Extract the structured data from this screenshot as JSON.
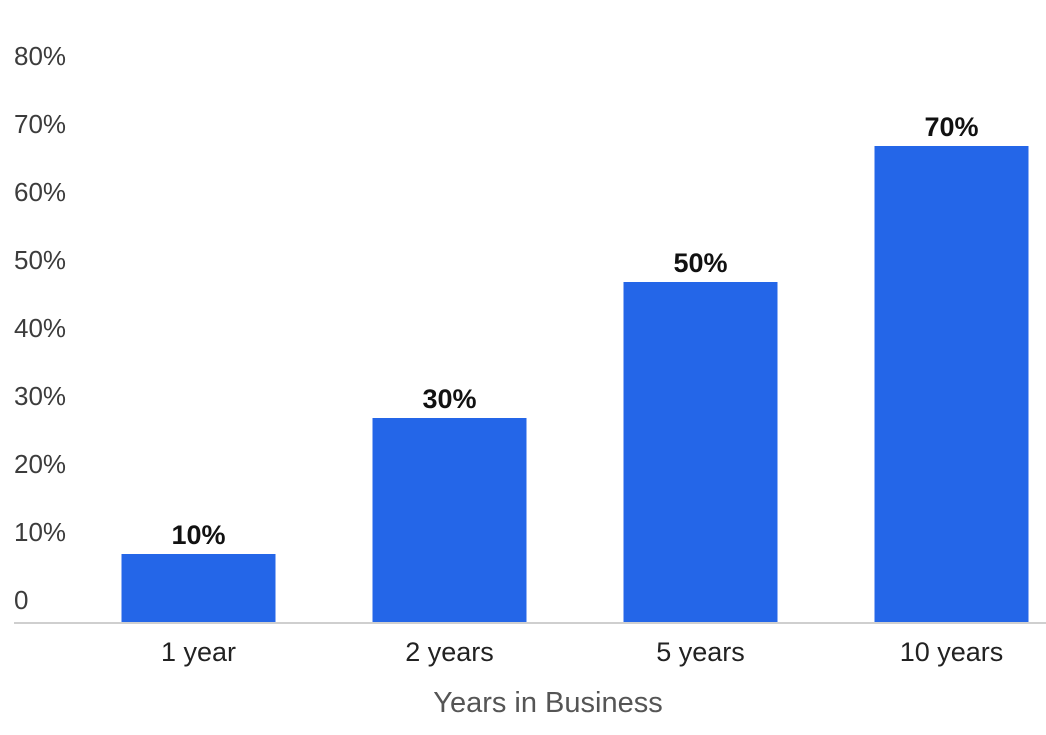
{
  "chart_data": {
    "type": "bar",
    "title": "",
    "xlabel": "Years in Business",
    "ylabel": "",
    "categories": [
      "1 year",
      "2 years",
      "5 years",
      "10 years"
    ],
    "values": [
      10,
      30,
      50,
      70
    ],
    "data_labels": [
      "10%",
      "30%",
      "50%",
      "70%"
    ],
    "ylim": [
      0,
      80
    ],
    "y_ticks": [
      0,
      10,
      20,
      30,
      40,
      50,
      60,
      70,
      80
    ],
    "y_tick_labels": [
      "0",
      "10%",
      "20%",
      "30%",
      "40%",
      "50%",
      "60%",
      "70%",
      "80%"
    ],
    "grid": false,
    "legend": "none",
    "bar_color": "#2466e8",
    "axis_color": "#cfcfcf"
  }
}
